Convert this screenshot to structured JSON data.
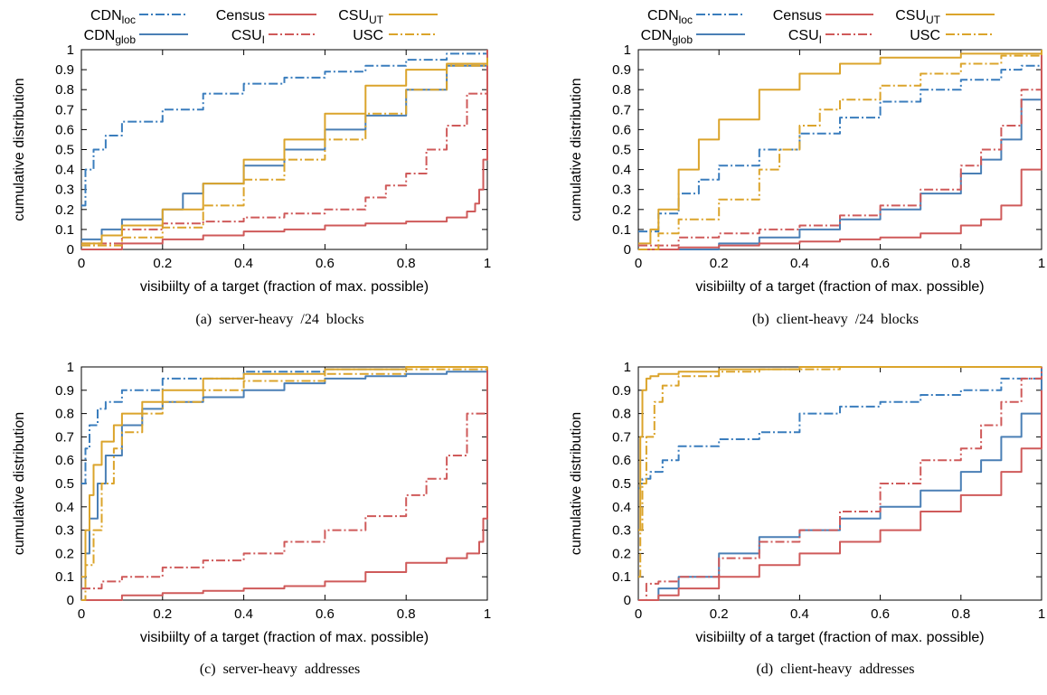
{
  "figure": {
    "colors": {
      "cdn_loc": "#3a7dbd",
      "cdn_glob": "#4a7fb5",
      "census": "#cf5a5a",
      "csu_i": "#cf5a5a",
      "csu_ut": "#dba42b",
      "usc": "#dba42b"
    },
    "legend_entries": [
      {
        "key": "cdn_loc",
        "base": "CDN",
        "sub": "loc",
        "dash": "dashdot"
      },
      {
        "key": "cdn_glob",
        "base": "CDN",
        "sub": "glob",
        "dash": "solid"
      },
      {
        "key": "census",
        "base": "Census",
        "sub": "",
        "dash": "solid"
      },
      {
        "key": "csu_i",
        "base": "CSU",
        "sub": "I",
        "dash": "dashdot"
      },
      {
        "key": "csu_ut",
        "base": "CSU",
        "sub": "UT",
        "dash": "solid"
      },
      {
        "key": "usc",
        "base": "USC",
        "sub": "",
        "dash": "dashdot"
      }
    ]
  },
  "chart_data": [
    {
      "type": "line",
      "caption": "(a)  server-heavy  /24  blocks",
      "xlabel": "visibiilty of a target (fraction of max. possible)",
      "ylabel": "cumulative distribution",
      "xlim": [
        0,
        1
      ],
      "ylim": [
        0,
        1
      ],
      "xticks": [
        "0",
        "0.2",
        "0.4",
        "0.6",
        "0.8",
        "1"
      ],
      "yticks": [
        "0",
        "0.1",
        "0.2",
        "0.3",
        "0.4",
        "0.5",
        "0.6",
        "0.7",
        "0.8",
        "0.9",
        "1"
      ],
      "series": [
        {
          "key": "cdn_loc",
          "name": "CDNloc",
          "x": [
            0,
            0.01,
            0.03,
            0.06,
            0.1,
            0.2,
            0.3,
            0.4,
            0.5,
            0.6,
            0.7,
            0.8,
            0.9,
            1.0
          ],
          "y": [
            0.22,
            0.4,
            0.5,
            0.57,
            0.64,
            0.7,
            0.78,
            0.83,
            0.86,
            0.89,
            0.92,
            0.95,
            0.98,
            1.0
          ]
        },
        {
          "key": "cdn_glob",
          "name": "CDNglob",
          "x": [
            0,
            0.05,
            0.1,
            0.2,
            0.25,
            0.3,
            0.4,
            0.5,
            0.6,
            0.7,
            0.8,
            0.9,
            1.0
          ],
          "y": [
            0.05,
            0.1,
            0.15,
            0.2,
            0.28,
            0.33,
            0.42,
            0.5,
            0.6,
            0.67,
            0.8,
            0.92,
            0.95
          ]
        },
        {
          "key": "census",
          "name": "Census",
          "x": [
            0,
            0.1,
            0.2,
            0.3,
            0.4,
            0.5,
            0.6,
            0.7,
            0.8,
            0.9,
            0.95,
            0.97,
            0.98,
            0.99,
            1.0
          ],
          "y": [
            0.0,
            0.03,
            0.05,
            0.07,
            0.09,
            0.1,
            0.12,
            0.13,
            0.14,
            0.16,
            0.19,
            0.23,
            0.3,
            0.45,
            1.0
          ]
        },
        {
          "key": "csu_i",
          "name": "CSUI",
          "x": [
            0,
            0.1,
            0.2,
            0.3,
            0.4,
            0.5,
            0.6,
            0.7,
            0.75,
            0.8,
            0.85,
            0.9,
            0.95,
            1.0
          ],
          "y": [
            0.03,
            0.1,
            0.13,
            0.14,
            0.16,
            0.18,
            0.2,
            0.26,
            0.32,
            0.38,
            0.5,
            0.62,
            0.78,
            0.95
          ]
        },
        {
          "key": "csu_ut",
          "name": "CSUUT",
          "x": [
            0,
            0.05,
            0.1,
            0.2,
            0.3,
            0.4,
            0.5,
            0.6,
            0.7,
            0.8,
            0.9,
            1.0
          ],
          "y": [
            0.03,
            0.07,
            0.12,
            0.2,
            0.33,
            0.45,
            0.55,
            0.68,
            0.82,
            0.9,
            0.93,
            0.96
          ]
        },
        {
          "key": "usc",
          "name": "USC",
          "x": [
            0,
            0.1,
            0.2,
            0.3,
            0.4,
            0.5,
            0.6,
            0.7,
            0.8,
            0.9,
            1.0
          ],
          "y": [
            0.02,
            0.06,
            0.11,
            0.22,
            0.35,
            0.45,
            0.55,
            0.68,
            0.8,
            0.92,
            0.95
          ]
        }
      ]
    },
    {
      "type": "line",
      "caption": "(b)  client-heavy  /24  blocks",
      "xlabel": "visibiilty of a target (fraction of max. possible)",
      "ylabel": "cumulative distribution",
      "xlim": [
        0,
        1
      ],
      "ylim": [
        0,
        1
      ],
      "xticks": [
        "0",
        "0.2",
        "0.4",
        "0.6",
        "0.8",
        "1"
      ],
      "yticks": [
        "0",
        "0.1",
        "0.2",
        "0.3",
        "0.4",
        "0.5",
        "0.6",
        "0.7",
        "0.8",
        "0.9",
        "1"
      ],
      "series": [
        {
          "key": "cdn_loc",
          "name": "CDNloc",
          "x": [
            0,
            0.05,
            0.1,
            0.15,
            0.2,
            0.3,
            0.4,
            0.5,
            0.6,
            0.7,
            0.8,
            0.9,
            0.95,
            1.0
          ],
          "y": [
            0.09,
            0.18,
            0.28,
            0.35,
            0.42,
            0.5,
            0.58,
            0.66,
            0.74,
            0.8,
            0.85,
            0.9,
            0.92,
            1.0
          ]
        },
        {
          "key": "cdn_glob",
          "name": "CDNglob",
          "x": [
            0,
            0.05,
            0.2,
            0.3,
            0.4,
            0.5,
            0.6,
            0.7,
            0.8,
            0.85,
            0.9,
            0.95,
            1.0
          ],
          "y": [
            0.0,
            0.0,
            0.03,
            0.06,
            0.1,
            0.15,
            0.2,
            0.28,
            0.38,
            0.45,
            0.55,
            0.75,
            1.0
          ]
        },
        {
          "key": "census",
          "name": "Census",
          "x": [
            0,
            0.1,
            0.2,
            0.3,
            0.4,
            0.5,
            0.6,
            0.7,
            0.8,
            0.85,
            0.9,
            0.95,
            1.0
          ],
          "y": [
            0.0,
            0.01,
            0.02,
            0.03,
            0.04,
            0.05,
            0.06,
            0.08,
            0.12,
            0.15,
            0.22,
            0.4,
            1.0
          ]
        },
        {
          "key": "csu_i",
          "name": "CSUI",
          "x": [
            0,
            0.1,
            0.2,
            0.3,
            0.4,
            0.5,
            0.6,
            0.7,
            0.8,
            0.85,
            0.9,
            0.95,
            1.0
          ],
          "y": [
            0.02,
            0.06,
            0.08,
            0.1,
            0.12,
            0.17,
            0.22,
            0.3,
            0.42,
            0.5,
            0.62,
            0.8,
            1.0
          ]
        },
        {
          "key": "csu_ut",
          "name": "CSUUT",
          "x": [
            0,
            0.03,
            0.05,
            0.1,
            0.15,
            0.2,
            0.3,
            0.4,
            0.5,
            0.6,
            0.8,
            1.0
          ],
          "y": [
            0.03,
            0.1,
            0.2,
            0.4,
            0.55,
            0.65,
            0.8,
            0.88,
            0.93,
            0.96,
            0.98,
            1.0
          ]
        },
        {
          "key": "usc",
          "name": "USC",
          "x": [
            0,
            0.05,
            0.1,
            0.2,
            0.3,
            0.35,
            0.4,
            0.45,
            0.5,
            0.6,
            0.7,
            0.8,
            0.9,
            1.0
          ],
          "y": [
            0.0,
            0.08,
            0.15,
            0.25,
            0.4,
            0.5,
            0.62,
            0.7,
            0.75,
            0.82,
            0.88,
            0.93,
            0.97,
            1.0
          ]
        }
      ]
    },
    {
      "type": "line",
      "caption": "(c)  server-heavy  addresses",
      "xlabel": "visibiilty of a target (fraction of max. possible)",
      "ylabel": "cumulative distribution",
      "xlim": [
        0,
        1
      ],
      "ylim": [
        0,
        1
      ],
      "xticks": [
        "0",
        "0.2",
        "0.4",
        "0.6",
        "0.8",
        "1"
      ],
      "yticks": [
        "0",
        "0.1",
        "0.2",
        "0.3",
        "0.4",
        "0.5",
        "0.6",
        "0.7",
        "0.8",
        "0.9",
        "1"
      ],
      "series": [
        {
          "key": "cdn_loc",
          "name": "CDNloc",
          "x": [
            0,
            0.01,
            0.02,
            0.04,
            0.06,
            0.1,
            0.2,
            0.4,
            0.6,
            0.8,
            1.0
          ],
          "y": [
            0.5,
            0.65,
            0.75,
            0.82,
            0.85,
            0.9,
            0.95,
            0.98,
            0.99,
            1.0,
            1.0
          ]
        },
        {
          "key": "cdn_glob",
          "name": "CDNglob",
          "x": [
            0,
            0.01,
            0.02,
            0.04,
            0.06,
            0.1,
            0.15,
            0.2,
            0.3,
            0.4,
            0.5,
            0.6,
            0.7,
            0.8,
            0.9,
            1.0
          ],
          "y": [
            0.05,
            0.2,
            0.35,
            0.5,
            0.62,
            0.75,
            0.82,
            0.85,
            0.87,
            0.9,
            0.93,
            0.95,
            0.96,
            0.97,
            0.98,
            1.0
          ]
        },
        {
          "key": "census",
          "name": "Census",
          "x": [
            0,
            0.1,
            0.2,
            0.3,
            0.4,
            0.5,
            0.6,
            0.7,
            0.8,
            0.9,
            0.95,
            0.98,
            0.99,
            1.0
          ],
          "y": [
            0.0,
            0.02,
            0.03,
            0.04,
            0.05,
            0.06,
            0.08,
            0.12,
            0.16,
            0.18,
            0.2,
            0.25,
            0.35,
            1.0
          ]
        },
        {
          "key": "csu_i",
          "name": "CSUI",
          "x": [
            0,
            0.05,
            0.1,
            0.2,
            0.3,
            0.4,
            0.5,
            0.6,
            0.7,
            0.8,
            0.85,
            0.9,
            0.95,
            1.0
          ],
          "y": [
            0.05,
            0.08,
            0.1,
            0.14,
            0.17,
            0.2,
            0.25,
            0.3,
            0.36,
            0.45,
            0.52,
            0.62,
            0.8,
            1.0
          ]
        },
        {
          "key": "csu_ut",
          "name": "CSUUT",
          "x": [
            0,
            0.01,
            0.02,
            0.03,
            0.05,
            0.08,
            0.1,
            0.15,
            0.2,
            0.3,
            0.4,
            0.6,
            0.8,
            1.0
          ],
          "y": [
            0.1,
            0.3,
            0.45,
            0.58,
            0.68,
            0.75,
            0.8,
            0.85,
            0.9,
            0.95,
            0.97,
            0.99,
            1.0,
            1.0
          ]
        },
        {
          "key": "usc",
          "name": "USC",
          "x": [
            0,
            0.01,
            0.03,
            0.05,
            0.08,
            0.1,
            0.15,
            0.2,
            0.3,
            0.4,
            0.6,
            0.8,
            1.0
          ],
          "y": [
            0.0,
            0.15,
            0.3,
            0.5,
            0.65,
            0.72,
            0.8,
            0.85,
            0.9,
            0.94,
            0.97,
            0.99,
            1.0
          ]
        }
      ]
    },
    {
      "type": "line",
      "caption": "(d)  client-heavy  addresses",
      "xlabel": "visibiilty of a target (fraction of max. possible)",
      "ylabel": "cumulative distribution",
      "xlim": [
        0,
        1
      ],
      "ylim": [
        0,
        1
      ],
      "xticks": [
        "0",
        "0.2",
        "0.4",
        "0.6",
        "0.8",
        "1"
      ],
      "yticks": [
        "0",
        "0.1",
        "0.2",
        "0.3",
        "0.4",
        "0.5",
        "0.6",
        "0.7",
        "0.8",
        "0.9",
        "1"
      ],
      "series": [
        {
          "key": "cdn_loc",
          "name": "CDNloc",
          "x": [
            0,
            0.005,
            0.01,
            0.03,
            0.06,
            0.1,
            0.2,
            0.3,
            0.4,
            0.5,
            0.6,
            0.7,
            0.8,
            0.9,
            1.0
          ],
          "y": [
            0.48,
            0.5,
            0.52,
            0.55,
            0.6,
            0.66,
            0.69,
            0.72,
            0.8,
            0.83,
            0.85,
            0.88,
            0.9,
            0.95,
            1.0
          ]
        },
        {
          "key": "cdn_glob",
          "name": "CDNglob",
          "x": [
            0,
            0.05,
            0.1,
            0.2,
            0.3,
            0.4,
            0.5,
            0.6,
            0.7,
            0.8,
            0.85,
            0.9,
            0.95,
            1.0
          ],
          "y": [
            0.0,
            0.05,
            0.1,
            0.2,
            0.27,
            0.3,
            0.35,
            0.4,
            0.47,
            0.55,
            0.6,
            0.7,
            0.8,
            1.0
          ]
        },
        {
          "key": "census",
          "name": "Census",
          "x": [
            0,
            0.05,
            0.1,
            0.2,
            0.3,
            0.4,
            0.5,
            0.6,
            0.7,
            0.8,
            0.9,
            0.95,
            1.0
          ],
          "y": [
            0.0,
            0.02,
            0.05,
            0.1,
            0.15,
            0.2,
            0.25,
            0.3,
            0.38,
            0.45,
            0.55,
            0.65,
            0.9
          ]
        },
        {
          "key": "csu_i",
          "name": "CSUI",
          "x": [
            0,
            0.02,
            0.05,
            0.1,
            0.2,
            0.3,
            0.4,
            0.5,
            0.6,
            0.7,
            0.8,
            0.85,
            0.9,
            0.95,
            1.0
          ],
          "y": [
            0.0,
            0.07,
            0.08,
            0.1,
            0.18,
            0.25,
            0.3,
            0.38,
            0.5,
            0.6,
            0.65,
            0.75,
            0.85,
            0.95,
            1.0
          ]
        },
        {
          "key": "csu_ut",
          "name": "CSUUT",
          "x": [
            0,
            0.005,
            0.01,
            0.02,
            0.03,
            0.05,
            0.1,
            0.2,
            0.4,
            0.6,
            0.8,
            1.0
          ],
          "y": [
            0.3,
            0.7,
            0.9,
            0.95,
            0.96,
            0.97,
            0.98,
            0.99,
            1.0,
            1.0,
            1.0,
            1.0
          ]
        },
        {
          "key": "usc",
          "name": "USC",
          "x": [
            0,
            0.005,
            0.01,
            0.02,
            0.04,
            0.06,
            0.1,
            0.2,
            0.3,
            0.5,
            0.7,
            1.0
          ],
          "y": [
            0.1,
            0.3,
            0.5,
            0.7,
            0.85,
            0.92,
            0.96,
            0.98,
            0.99,
            1.0,
            1.0,
            1.0
          ]
        }
      ]
    }
  ]
}
